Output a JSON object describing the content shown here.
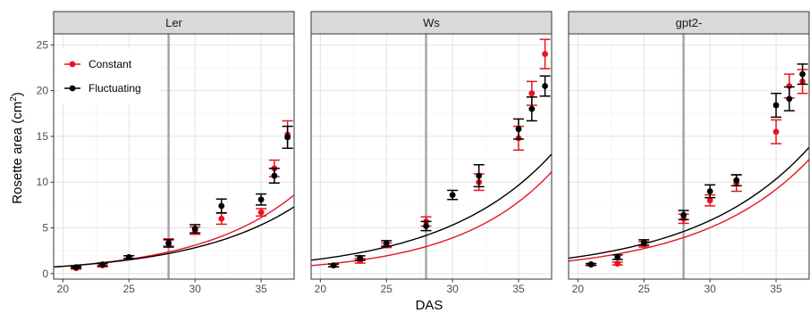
{
  "colors": {
    "constant": "#e8141e",
    "fluctuating": "#000000",
    "grid_major": "#e2e2e2",
    "grid_minor": "#f0f0f0",
    "panel_border": "#333333",
    "strip_fill": "#d9d9d9",
    "vline": "#a6a6a6"
  },
  "chart_data": {
    "type": "scatter",
    "facet_by": "genotype",
    "xlabel": "DAS",
    "ylabel_main": "Rosette area (cm",
    "ylabel_sup": "2",
    "ylabel_close": ")",
    "xlim": [
      19.3,
      37.5
    ],
    "ylim": [
      -0.6,
      26.2
    ],
    "xticks": [
      20,
      25,
      30,
      35
    ],
    "yticks": [
      0,
      5,
      10,
      15,
      20,
      25
    ],
    "vline_x": 28,
    "legend": {
      "position": "top-left",
      "entries": [
        {
          "key": "constant",
          "label": "Constant"
        },
        {
          "key": "fluctuating",
          "label": "Fluctuating"
        }
      ]
    },
    "panels": [
      {
        "name": "Ler",
        "series": [
          {
            "key": "constant",
            "points": [
              {
                "x": 21,
                "y": 0.6,
                "err": 0.1
              },
              {
                "x": 23,
                "y": 0.9,
                "err": 0.15
              },
              {
                "x": 25,
                "y": 1.8,
                "err": 0.15
              },
              {
                "x": 28,
                "y": 3.4,
                "err": 0.4
              },
              {
                "x": 30,
                "y": 4.7,
                "err": 0.4
              },
              {
                "x": 32,
                "y": 6.0,
                "err": 0.6
              },
              {
                "x": 35,
                "y": 6.7,
                "err": 0.4
              },
              {
                "x": 36,
                "y": 11.5,
                "err": 0.9
              },
              {
                "x": 37,
                "y": 15.2,
                "err": 1.5
              }
            ],
            "fit": {
              "a": 0.1007,
              "b": 0.1357,
              "x0": 20
            }
          },
          {
            "key": "fluctuating",
            "points": [
              {
                "x": 21,
                "y": 0.7,
                "err": 0.1
              },
              {
                "x": 23,
                "y": 1.0,
                "err": 0.15
              },
              {
                "x": 25,
                "y": 1.8,
                "err": 0.15
              },
              {
                "x": 28,
                "y": 3.3,
                "err": 0.4
              },
              {
                "x": 30,
                "y": 4.9,
                "err": 0.45
              },
              {
                "x": 32,
                "y": 7.4,
                "err": 0.75
              },
              {
                "x": 35,
                "y": 8.1,
                "err": 0.6
              },
              {
                "x": 36,
                "y": 10.7,
                "err": 0.8
              },
              {
                "x": 37,
                "y": 14.9,
                "err": 1.2
              }
            ],
            "fit": {
              "a": 0.1008,
              "b": 0.1263,
              "x0": 20
            }
          }
        ]
      },
      {
        "name": "Ws",
        "series": [
          {
            "key": "constant",
            "points": [
              {
                "x": 21,
                "y": 0.9,
                "err": 0.15
              },
              {
                "x": 23,
                "y": 1.4,
                "err": 0.25
              },
              {
                "x": 25,
                "y": 3.1,
                "err": 0.25
              },
              {
                "x": 28,
                "y": 5.7,
                "err": 0.5
              },
              {
                "x": 32,
                "y": 10.0,
                "err": 0.9
              },
              {
                "x": 35,
                "y": 14.8,
                "err": 1.3
              },
              {
                "x": 36,
                "y": 19.7,
                "err": 1.3
              },
              {
                "x": 37,
                "y": 24.0,
                "err": 1.6
              }
            ],
            "fit": {
              "a": 0.1221,
              "b": 0.1394,
              "x0": 20
            }
          },
          {
            "key": "fluctuating",
            "points": [
              {
                "x": 21,
                "y": 0.9,
                "err": 0.15
              },
              {
                "x": 23,
                "y": 1.7,
                "err": 0.25
              },
              {
                "x": 25,
                "y": 3.3,
                "err": 0.3
              },
              {
                "x": 28,
                "y": 5.2,
                "err": 0.5
              },
              {
                "x": 30,
                "y": 8.6,
                "err": 0.5
              },
              {
                "x": 32,
                "y": 10.7,
                "err": 1.2
              },
              {
                "x": 35,
                "y": 15.8,
                "err": 1.1
              },
              {
                "x": 36,
                "y": 18.0,
                "err": 1.3
              },
              {
                "x": 37,
                "y": 20.5,
                "err": 1.1
              }
            ],
            "fit": {
              "a": 0.2013,
              "b": 0.12,
              "x0": 20
            }
          }
        ]
      },
      {
        "name": "gpt2-",
        "series": [
          {
            "key": "constant",
            "points": [
              {
                "x": 21,
                "y": 1.0,
                "err": 0.1
              },
              {
                "x": 23,
                "y": 1.1,
                "err": 0.15
              },
              {
                "x": 25,
                "y": 3.2,
                "err": 0.3
              },
              {
                "x": 28,
                "y": 6.0,
                "err": 0.5
              },
              {
                "x": 30,
                "y": 8.0,
                "err": 0.6
              },
              {
                "x": 32,
                "y": 9.9,
                "err": 0.9
              },
              {
                "x": 35,
                "y": 15.5,
                "err": 1.3
              },
              {
                "x": 36,
                "y": 20.5,
                "err": 1.3
              },
              {
                "x": 37,
                "y": 21.0,
                "err": 1.3
              }
            ],
            "fit": {
              "a": 0.1883,
              "b": 0.1212,
              "x0": 20
            }
          },
          {
            "key": "fluctuating",
            "points": [
              {
                "x": 21,
                "y": 1.0,
                "err": 0.1
              },
              {
                "x": 23,
                "y": 1.8,
                "err": 0.25
              },
              {
                "x": 25,
                "y": 3.4,
                "err": 0.3
              },
              {
                "x": 28,
                "y": 6.4,
                "err": 0.5
              },
              {
                "x": 30,
                "y": 9.0,
                "err": 0.7
              },
              {
                "x": 32,
                "y": 10.2,
                "err": 0.6
              },
              {
                "x": 35,
                "y": 18.4,
                "err": 1.3
              },
              {
                "x": 36,
                "y": 19.1,
                "err": 1.3
              },
              {
                "x": 37,
                "y": 21.8,
                "err": 1.1
              }
            ],
            "fit": {
              "a": 0.2306,
              "b": 0.1154,
              "x0": 20
            }
          }
        ]
      }
    ]
  }
}
